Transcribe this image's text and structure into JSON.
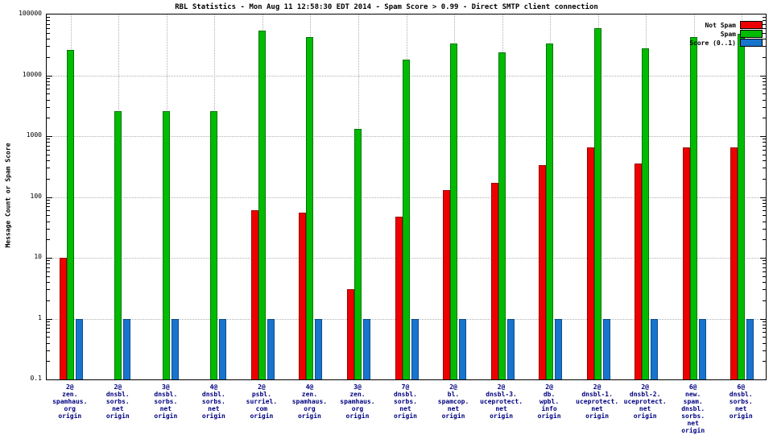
{
  "title": "RBL Statistics - Mon Aug 11 12:58:30 EDT 2014 - Spam Score > 0.99 - Direct SMTP client connection",
  "ylabel": "Message Count or Spam Score",
  "chart_data": {
    "type": "bar",
    "yscale": "log",
    "grid": true,
    "legend_position": "top-right",
    "ylim": [
      0.1,
      100000
    ],
    "yticks": [
      "100000",
      "10000",
      "1000",
      "100",
      "10",
      "1",
      "0.1"
    ],
    "categories": [
      [
        "2@",
        "zen.",
        "spamhaus.",
        "org",
        "origin"
      ],
      [
        "2@",
        "dnsbl.",
        "sorbs.",
        "net",
        "origin"
      ],
      [
        "3@",
        "dnsbl.",
        "sorbs.",
        "net",
        "origin"
      ],
      [
        "4@",
        "dnsbl.",
        "sorbs.",
        "net",
        "origin"
      ],
      [
        "2@",
        "psbl.",
        "surriel.",
        "com",
        "origin"
      ],
      [
        "4@",
        "zen.",
        "spamhaus.",
        "org",
        "origin"
      ],
      [
        "3@",
        "zen.",
        "spamhaus.",
        "org",
        "origin"
      ],
      [
        "7@",
        "dnsbl.",
        "sorbs.",
        "net",
        "origin"
      ],
      [
        "2@",
        "bl.",
        "spamcop.",
        "net",
        "origin"
      ],
      [
        "2@",
        "dnsbl-3.",
        "uceprotect.",
        "net",
        "origin"
      ],
      [
        "2@",
        "db.",
        "wpbl.",
        "info",
        "origin"
      ],
      [
        "2@",
        "dnsbl-1.",
        "uceprotect.",
        "net",
        "origin"
      ],
      [
        "2@",
        "dnsbl-2.",
        "uceprotect.",
        "net",
        "origin"
      ],
      [
        "6@",
        "new.",
        "spam.",
        "dnsbl.",
        "sorbs.",
        "net",
        "origin"
      ],
      [
        "6@",
        "dnsbl.",
        "sorbs.",
        "net",
        "origin"
      ]
    ],
    "series": [
      {
        "name": "Not Spam",
        "color": "#ee0000",
        "border_color": "#990000",
        "values": [
          10,
          0,
          0,
          0,
          60,
          55,
          3,
          48,
          130,
          170,
          330,
          650,
          350,
          650,
          660
        ]
      },
      {
        "name": "Spam",
        "color": "#00bb00",
        "border_color": "#007700",
        "values": [
          26000,
          2600,
          2600,
          2600,
          55000,
          42000,
          1300,
          18000,
          33000,
          24000,
          33000,
          60000,
          28000,
          42000,
          48000
        ]
      },
      {
        "name": "Score (0..1)",
        "color": "#1874cd",
        "border_color": "#0f4c8c",
        "values": [
          1,
          1,
          1,
          1,
          1,
          1,
          1,
          1,
          1,
          1,
          1,
          1,
          1,
          1,
          1
        ]
      }
    ]
  }
}
